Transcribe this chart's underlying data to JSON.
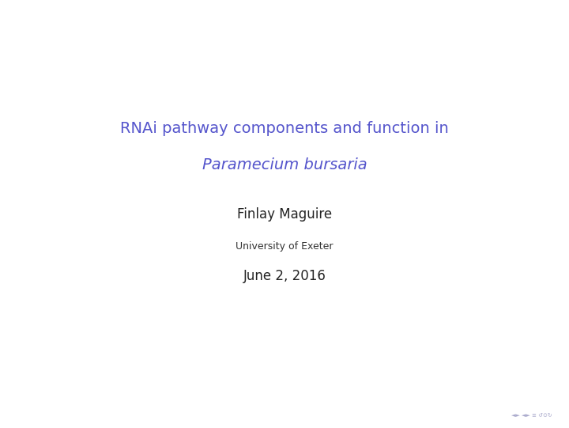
{
  "title_line1": "RNAi pathway components and function in",
  "title_line2": "Paramecium bursaria",
  "author": "Finlay Maguire",
  "institution": "University of Exeter",
  "date": "June 2, 2016",
  "title_color": "#5555cc",
  "author_color": "#222222",
  "institution_color": "#333333",
  "date_color": "#222222",
  "background_color": "#ffffff",
  "title_fontsize": 14,
  "author_fontsize": 12,
  "institution_fontsize": 9,
  "date_fontsize": 12,
  "nav_color": "#aaaacc",
  "nav_fontsize": 5
}
